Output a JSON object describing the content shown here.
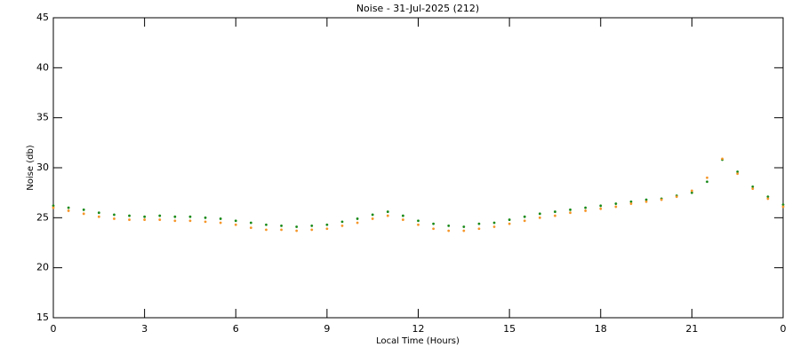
{
  "chart_data": {
    "type": "scatter",
    "title": "Noise - 31-Jul-2025 (212)",
    "x_label": "Local Time (Hours)",
    "y_label": "Noise (db)",
    "xlim": [
      0,
      24
    ],
    "xticks": [
      0,
      3,
      6,
      9,
      12,
      15,
      18,
      21,
      {
        "value": 24,
        "label": "0"
      }
    ],
    "ylim": [
      15,
      45
    ],
    "yticks": [
      15,
      20,
      25,
      30,
      35,
      40,
      45
    ],
    "x": [
      0,
      0.5,
      1,
      1.5,
      2,
      2.5,
      3,
      3.5,
      4,
      4.5,
      5,
      5.5,
      6,
      6.5,
      7,
      7.5,
      8,
      8.5,
      9,
      9.5,
      10,
      10.5,
      11,
      11.5,
      12,
      12.5,
      13,
      13.5,
      14,
      14.5,
      15,
      15.5,
      16,
      16.5,
      17,
      17.5,
      18,
      18.5,
      19,
      19.5,
      20,
      20.5,
      21,
      21.5,
      22,
      22.5,
      23,
      23.5,
      24
    ],
    "series": [
      {
        "color": "#1a8a1a",
        "values": [
          26.2,
          26.0,
          25.8,
          25.5,
          25.3,
          25.2,
          25.1,
          25.2,
          25.1,
          25.1,
          25.0,
          24.9,
          24.7,
          24.5,
          24.3,
          24.2,
          24.1,
          24.2,
          24.3,
          24.6,
          24.9,
          25.3,
          25.6,
          25.2,
          24.7,
          24.4,
          24.2,
          24.1,
          24.4,
          24.5,
          24.8,
          25.1,
          25.4,
          25.6,
          25.8,
          26.0,
          26.2,
          26.4,
          26.6,
          26.8,
          26.9,
          27.2,
          27.5,
          28.6,
          30.8,
          29.6,
          28.1,
          27.1,
          26.3
        ]
      },
      {
        "color": "#f5962a",
        "values": [
          26.0,
          25.7,
          25.4,
          25.1,
          24.9,
          24.8,
          24.8,
          24.8,
          24.7,
          24.7,
          24.6,
          24.5,
          24.3,
          24.0,
          23.8,
          23.8,
          23.7,
          23.8,
          23.9,
          24.2,
          24.5,
          24.9,
          25.2,
          24.8,
          24.3,
          23.9,
          23.7,
          23.7,
          23.9,
          24.1,
          24.4,
          24.7,
          25.0,
          25.2,
          25.5,
          25.7,
          25.9,
          26.1,
          26.4,
          26.6,
          26.8,
          27.1,
          27.7,
          29.0,
          30.9,
          29.4,
          27.9,
          26.9,
          26.1
        ]
      }
    ]
  }
}
